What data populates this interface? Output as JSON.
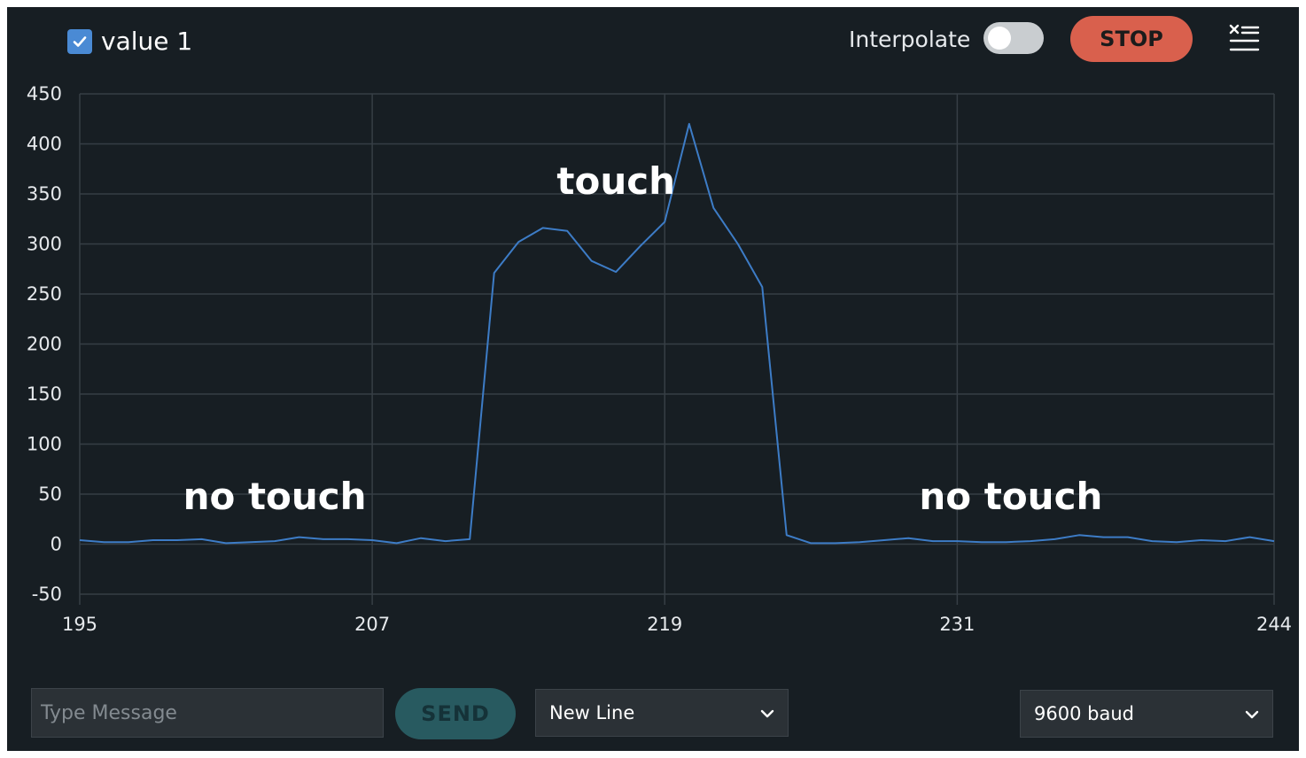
{
  "legend": {
    "label": "value 1",
    "checked": true,
    "series_color": "#4a8ad4"
  },
  "toolbar": {
    "interpolate_label": "Interpolate",
    "interpolate_on": false,
    "stop_label": "STOP"
  },
  "chart_data": {
    "type": "line",
    "xlim": [
      195,
      244
    ],
    "ylim": [
      -50,
      450
    ],
    "x_ticks": [
      195,
      207,
      219,
      231,
      244
    ],
    "y_ticks": [
      450,
      400,
      350,
      300,
      250,
      200,
      150,
      100,
      50,
      0,
      -50
    ],
    "grid": true,
    "series": [
      {
        "color": "#3d7cc6",
        "points": [
          [
            195,
            4
          ],
          [
            196,
            2
          ],
          [
            197,
            2
          ],
          [
            198,
            4
          ],
          [
            199,
            4
          ],
          [
            200,
            5
          ],
          [
            201,
            1
          ],
          [
            202,
            2
          ],
          [
            203,
            3
          ],
          [
            204,
            7
          ],
          [
            205,
            5
          ],
          [
            206,
            5
          ],
          [
            207,
            4
          ],
          [
            208,
            1
          ],
          [
            209,
            6
          ],
          [
            210,
            3
          ],
          [
            211,
            5
          ],
          [
            212,
            271
          ],
          [
            213,
            302
          ],
          [
            214,
            316
          ],
          [
            215,
            313
          ],
          [
            216,
            283
          ],
          [
            217,
            272
          ],
          [
            218,
            298
          ],
          [
            219,
            322
          ],
          [
            220,
            420
          ],
          [
            221,
            336
          ],
          [
            222,
            300
          ],
          [
            223,
            257
          ],
          [
            224,
            9
          ],
          [
            225,
            1
          ],
          [
            226,
            1
          ],
          [
            227,
            2
          ],
          [
            228,
            4
          ],
          [
            229,
            6
          ],
          [
            230,
            3
          ],
          [
            231,
            3
          ],
          [
            232,
            2
          ],
          [
            233,
            2
          ],
          [
            234,
            3
          ],
          [
            235,
            5
          ],
          [
            236,
            9
          ],
          [
            237,
            7
          ],
          [
            238,
            7
          ],
          [
            239,
            3
          ],
          [
            240,
            2
          ],
          [
            241,
            4
          ],
          [
            242,
            3
          ],
          [
            243,
            7
          ],
          [
            244,
            3
          ]
        ]
      }
    ],
    "annotations": [
      {
        "text": "touch",
        "x": 217.0,
        "y": 350
      },
      {
        "text": "no touch",
        "x": 203.0,
        "y": 35
      },
      {
        "text": "no touch",
        "x": 233.2,
        "y": 35
      }
    ]
  },
  "footer": {
    "message_placeholder": "Type Message",
    "send_label": "SEND",
    "line_ending": "New Line",
    "baud_rate": "9600 baud"
  }
}
